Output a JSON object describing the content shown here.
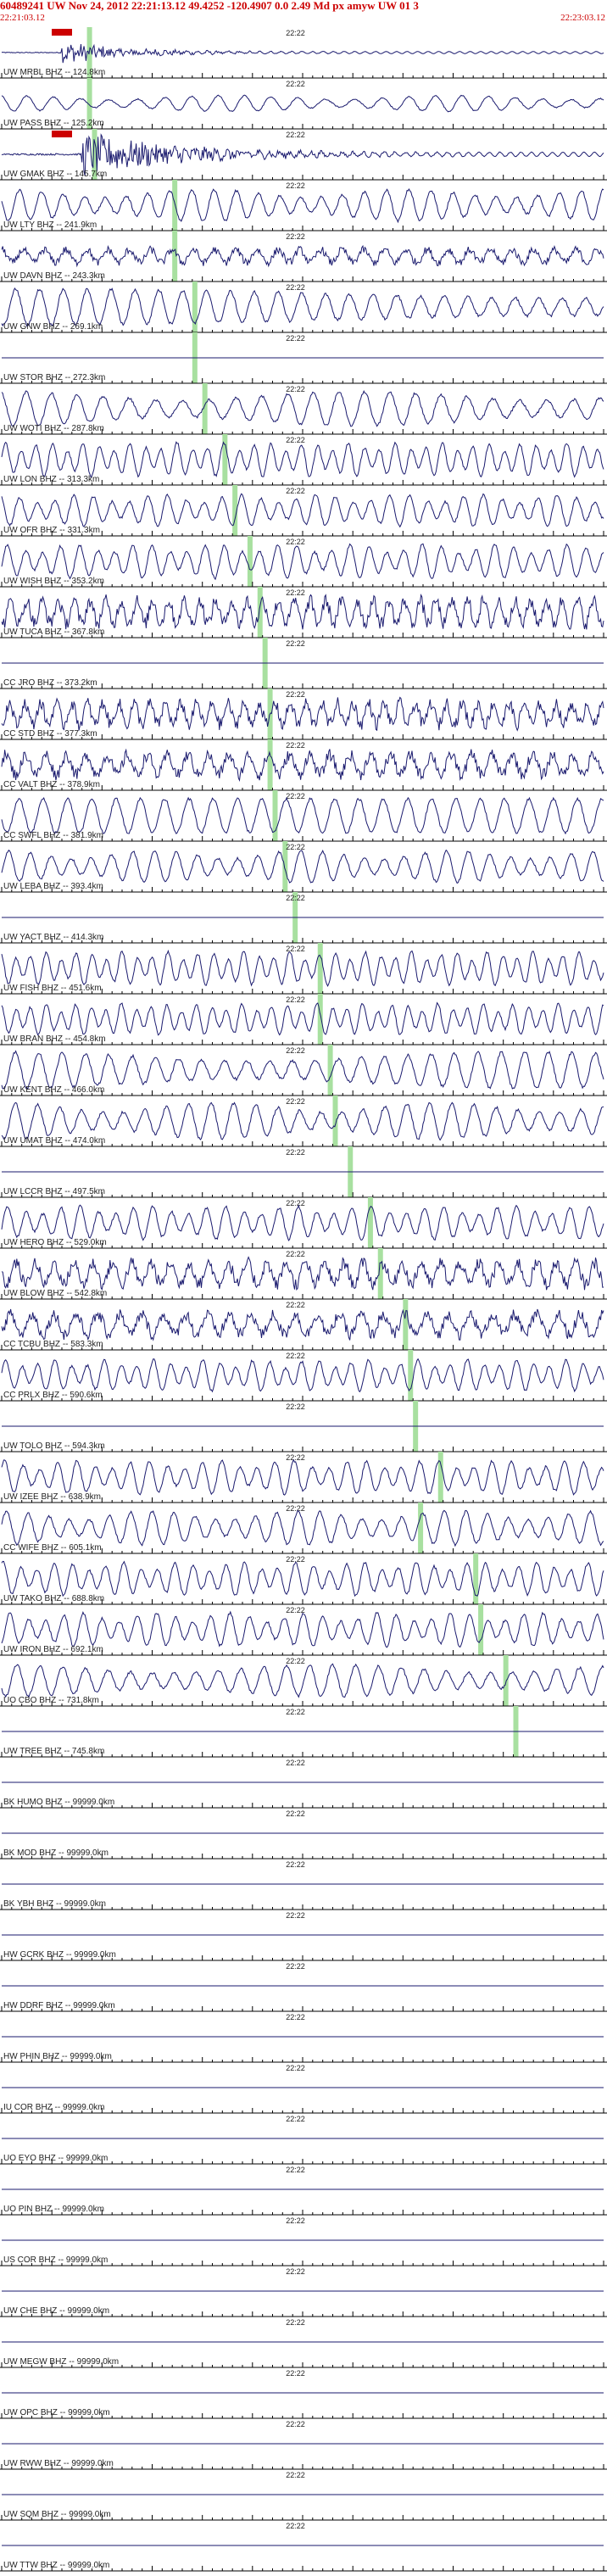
{
  "header": {
    "title": "60489241 UW Nov 24, 2012 22:21:13.12   49.4252 -120.4907  0.0 2.49 Md px amyw UW 01   3",
    "time_start": "22:21:03.12",
    "time_end": "22:23:03.12"
  },
  "chart_data": {
    "type": "line",
    "title": "60489241 UW Nov 24, 2012 22:21:13.12   49.4252 -120.4907  0.0 2.49 Md px amyw UW 01   3",
    "x_start_label": "22:21:03.12",
    "x_end_label": "22:23:03.12",
    "x_range_seconds": [
      0,
      120
    ],
    "minute_tick_label": "22:22",
    "minute_tick_seconds": 57,
    "grid": false,
    "colors": {
      "trace": "#1a1a6e",
      "header": "#cc0000",
      "pick_marker": "#cc0000",
      "travel_time_band": "#a8e0a0",
      "axis": "#000000"
    },
    "stations": [
      {
        "label": "UW MRBL BHZ -- 124.8km",
        "dist_km": 124.8,
        "pattern": "quake",
        "amp": 0.45,
        "pick": true,
        "band": [
          17,
          18
        ]
      },
      {
        "label": "UW PASS BHZ -- 125.2km",
        "dist_km": 125.2,
        "pattern": "wave",
        "amp": 0.35,
        "band": [
          17,
          18
        ]
      },
      {
        "label": "UW GMAK BHZ -- 145.7km",
        "dist_km": 145.7,
        "pattern": "quake2",
        "amp": 0.9,
        "pick": true,
        "band": [
          18,
          19
        ]
      },
      {
        "label": "UW LTY BHZ -- 241.9km",
        "dist_km": 241.9,
        "pattern": "wave",
        "amp": 0.7,
        "band": [
          34,
          35
        ]
      },
      {
        "label": "UW DAVN BHZ -- 243.3km",
        "dist_km": 243.3,
        "pattern": "noisy",
        "amp": 0.45,
        "band": [
          34,
          35
        ]
      },
      {
        "label": "UW GNW BHZ -- 269.1km",
        "dist_km": 269.1,
        "pattern": "wave",
        "amp": 0.8,
        "band": [
          38,
          39
        ]
      },
      {
        "label": "UW STOR BHZ -- 272.3km",
        "dist_km": 272.3,
        "pattern": "flat",
        "amp": 0.05,
        "band": [
          38,
          39
        ]
      },
      {
        "label": "UW WOTI BHZ -- 287.8km",
        "dist_km": 287.8,
        "pattern": "wave",
        "amp": 0.75,
        "band": [
          40,
          41
        ]
      },
      {
        "label": "UW LON BHZ -- 313.3km",
        "dist_km": 313.3,
        "pattern": "wave",
        "amp": 0.75,
        "band": [
          44,
          45
        ]
      },
      {
        "label": "UW OFR BHZ -- 331.3km",
        "dist_km": 331.3,
        "pattern": "wave",
        "amp": 0.7,
        "band": [
          46,
          47
        ]
      },
      {
        "label": "UW WISH BHZ -- 353.2km",
        "dist_km": 353.2,
        "pattern": "wave",
        "amp": 0.75,
        "band": [
          49,
          50
        ]
      },
      {
        "label": "UW TUCA BHZ -- 367.8km",
        "dist_km": 367.8,
        "pattern": "noisy",
        "amp": 0.8,
        "band": [
          51,
          52
        ]
      },
      {
        "label": "CC JRO BHZ -- 373.2km",
        "dist_km": 373.2,
        "pattern": "flat",
        "amp": 0.05,
        "band": [
          52,
          53
        ]
      },
      {
        "label": "CC STD BHZ -- 377.3km",
        "dist_km": 377.3,
        "pattern": "noisy",
        "amp": 0.75,
        "band": [
          53,
          54
        ]
      },
      {
        "label": "CC VALT BHZ -- 378.9km",
        "dist_km": 378.9,
        "pattern": "noisy",
        "amp": 0.7,
        "band": [
          53,
          54
        ]
      },
      {
        "label": "CC SWFL BHZ -- 381.9km",
        "dist_km": 381.9,
        "pattern": "wave",
        "amp": 0.75,
        "band": [
          54,
          55
        ]
      },
      {
        "label": "UW LEBA BHZ -- 393.4km",
        "dist_km": 393.4,
        "pattern": "wave",
        "amp": 0.7,
        "band": [
          56,
          57
        ]
      },
      {
        "label": "UW YACT BHZ -- 414.3km",
        "dist_km": 414.3,
        "pattern": "flat",
        "amp": 0.05,
        "band": [
          58,
          59
        ]
      },
      {
        "label": "UW FISH BHZ -- 451.6km",
        "dist_km": 451.6,
        "pattern": "wave",
        "amp": 0.75,
        "band": [
          63,
          64
        ]
      },
      {
        "label": "UW BRAN BHZ -- 454.8km",
        "dist_km": 454.8,
        "pattern": "wave",
        "amp": 0.7,
        "band": [
          63,
          64
        ]
      },
      {
        "label": "UW KENT BHZ -- 466.0km",
        "dist_km": 466.0,
        "pattern": "wave",
        "amp": 0.8,
        "band": [
          65,
          66
        ]
      },
      {
        "label": "UW UMAT BHZ -- 474.0km",
        "dist_km": 474.0,
        "pattern": "wave",
        "amp": 0.8,
        "band": [
          66,
          67
        ]
      },
      {
        "label": "UW LCCR BHZ -- 497.5km",
        "dist_km": 497.5,
        "pattern": "flat",
        "amp": 0.05,
        "band": [
          69,
          70
        ]
      },
      {
        "label": "UW HERO BHZ -- 529.0km",
        "dist_km": 529.0,
        "pattern": "wave",
        "amp": 0.75,
        "band": [
          73,
          74
        ]
      },
      {
        "label": "UW BLOW BHZ -- 542.8km",
        "dist_km": 542.8,
        "pattern": "noisy",
        "amp": 0.75,
        "band": [
          75,
          76
        ]
      },
      {
        "label": "CC TCBU BHZ -- 583.3km",
        "dist_km": 583.3,
        "pattern": "noisy",
        "amp": 0.7,
        "band": [
          80,
          81
        ]
      },
      {
        "label": "CC PRLX BHZ -- 590.6km",
        "dist_km": 590.6,
        "pattern": "wave",
        "amp": 0.7,
        "band": [
          81,
          82
        ]
      },
      {
        "label": "UW TOLO BHZ -- 594.3km",
        "dist_km": 594.3,
        "pattern": "flat",
        "amp": 0.05,
        "band": [
          82,
          83
        ]
      },
      {
        "label": "UW IZEE BHZ -- 638.9km",
        "dist_km": 638.9,
        "pattern": "wave",
        "amp": 0.75,
        "band": [
          87,
          88
        ]
      },
      {
        "label": "CC WIFE BHZ -- 605.1km",
        "dist_km": 605.1,
        "pattern": "wave",
        "amp": 0.75,
        "band": [
          83,
          84
        ]
      },
      {
        "label": "UW TAKO BHZ -- 688.8km",
        "dist_km": 688.8,
        "pattern": "wave",
        "amp": 0.75,
        "band": [
          94,
          95
        ]
      },
      {
        "label": "UW IRON BHZ -- 692.1km",
        "dist_km": 692.1,
        "pattern": "wave",
        "amp": 0.75,
        "band": [
          95,
          96
        ]
      },
      {
        "label": "UO CBO BHZ -- 731.8km",
        "dist_km": 731.8,
        "pattern": "wave",
        "amp": 0.7,
        "band": [
          100,
          101
        ]
      },
      {
        "label": "UW TREE BHZ -- 745.8km",
        "dist_km": 745.8,
        "pattern": "flat",
        "amp": 0.05,
        "band": [
          102,
          103
        ]
      },
      {
        "label": "BK HUMO BHZ -- 99999.0km",
        "dist_km": 99999.0,
        "pattern": "flat",
        "amp": 0.03
      },
      {
        "label": "BK MOD BHZ -- 99999.0km",
        "dist_km": 99999.0,
        "pattern": "flat",
        "amp": 0.03
      },
      {
        "label": "BK YBH BHZ -- 99999.0km",
        "dist_km": 99999.0,
        "pattern": "flat",
        "amp": 0.03
      },
      {
        "label": "HW GCRK BHZ -- 99999.0km",
        "dist_km": 99999.0,
        "pattern": "flat",
        "amp": 0.03
      },
      {
        "label": "HW DDRF BHZ -- 99999.0km",
        "dist_km": 99999.0,
        "pattern": "flat",
        "amp": 0.03
      },
      {
        "label": "HW PHIN BHZ -- 99999.0km",
        "dist_km": 99999.0,
        "pattern": "flat",
        "amp": 0.03
      },
      {
        "label": "IU COR BHZ -- 99999.0km",
        "dist_km": 99999.0,
        "pattern": "flat",
        "amp": 0.03
      },
      {
        "label": "UO EYO BHZ -- 99999.0km",
        "dist_km": 99999.0,
        "pattern": "flat",
        "amp": 0.03
      },
      {
        "label": "UO PIN BHZ -- 99999.0km",
        "dist_km": 99999.0,
        "pattern": "flat",
        "amp": 0.03
      },
      {
        "label": "US COR BHZ -- 99999.0km",
        "dist_km": 99999.0,
        "pattern": "flat",
        "amp": 0.03
      },
      {
        "label": "UW CHE BHZ -- 99999.0km",
        "dist_km": 99999.0,
        "pattern": "flat",
        "amp": 0.03
      },
      {
        "label": "UW MEGW BHZ -- 99999.0km",
        "dist_km": 99999.0,
        "pattern": "flat",
        "amp": 0.03
      },
      {
        "label": "UW OPC BHZ -- 99999.0km",
        "dist_km": 99999.0,
        "pattern": "flat",
        "amp": 0.03
      },
      {
        "label": "UW RWW BHZ -- 99999.0km",
        "dist_km": 99999.0,
        "pattern": "flat",
        "amp": 0.03
      },
      {
        "label": "UW SQM BHZ -- 99999.0km",
        "dist_km": 99999.0,
        "pattern": "flat",
        "amp": 0.03
      },
      {
        "label": "UW TTW BHZ -- 99999.0km",
        "dist_km": 99999.0,
        "pattern": "flat",
        "amp": 0.03
      }
    ]
  }
}
